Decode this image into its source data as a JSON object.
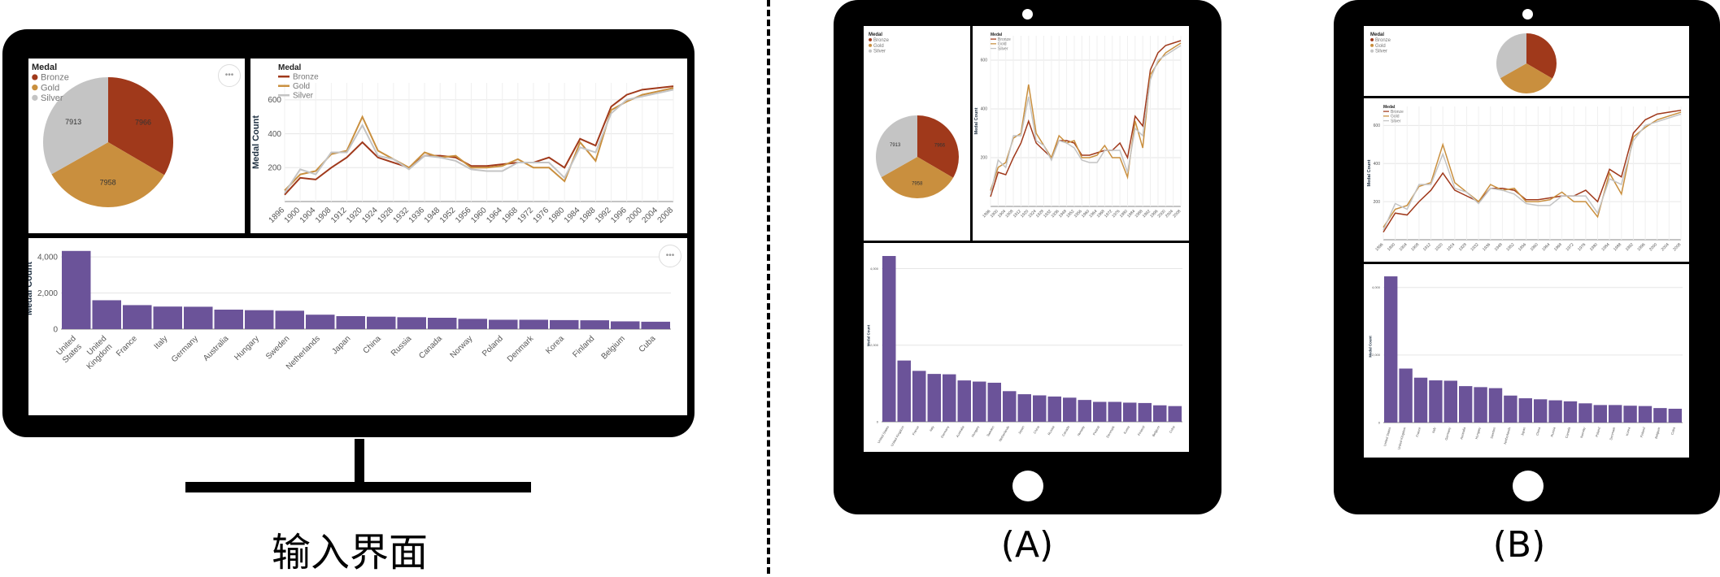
{
  "captions": {
    "monitor": "输入界面",
    "tablet_a": "(A)",
    "tablet_b": "(B)"
  },
  "colors": {
    "bronze": "#a0391b",
    "gold": "#c98f3e",
    "silver": "#c4c4c4",
    "bar": "#6b5399",
    "frame": "#000000"
  },
  "menu_glyph": "•••",
  "chart_data": [
    {
      "type": "pie",
      "title": "Medal",
      "legend": [
        "Bronze",
        "Gold",
        "Silver"
      ],
      "values": [
        7966,
        7958,
        7913
      ],
      "slice_labels": [
        "7966",
        "7958",
        "7913"
      ]
    },
    {
      "type": "line",
      "title": "Medal",
      "ylabel": "Medal Count",
      "ylim": [
        0,
        700
      ],
      "yticks": [
        200,
        400,
        600
      ],
      "x": [
        "1896",
        "1900",
        "1904",
        "1908",
        "1912",
        "1920",
        "1924",
        "1928",
        "1932",
        "1936",
        "1948",
        "1952",
        "1956",
        "1960",
        "1964",
        "1968",
        "1972",
        "1976",
        "1980",
        "1984",
        "1988",
        "1992",
        "1996",
        "2000",
        "2004",
        "2008"
      ],
      "x_tick_labels": [
        "1896",
        "1900",
        "1904",
        "1908",
        "1912",
        "1920",
        "1924",
        "1928",
        "1932",
        "1936",
        "1948",
        "1952",
        "1956",
        "1960",
        "1964",
        "1968",
        "1972",
        "1976",
        "1980",
        "1984",
        "1988",
        "1992",
        "1996",
        "2000",
        "2004",
        "2008"
      ],
      "series": [
        {
          "name": "Bronze",
          "values": [
            40,
            140,
            130,
            200,
            260,
            350,
            260,
            230,
            200,
            270,
            270,
            260,
            210,
            210,
            220,
            230,
            230,
            260,
            200,
            370,
            330,
            560,
            630,
            660,
            670,
            680
          ]
        },
        {
          "name": "Gold",
          "values": [
            65,
            160,
            180,
            280,
            300,
            500,
            300,
            250,
            200,
            290,
            260,
            270,
            200,
            200,
            210,
            250,
            200,
            200,
            120,
            350,
            240,
            540,
            590,
            630,
            650,
            670
          ]
        },
        {
          "name": "Silver",
          "values": [
            50,
            190,
            160,
            290,
            290,
            450,
            270,
            250,
            190,
            270,
            260,
            240,
            190,
            180,
            180,
            230,
            230,
            230,
            140,
            320,
            290,
            520,
            600,
            620,
            640,
            660
          ]
        }
      ]
    },
    {
      "type": "bar",
      "ylabel": "Medal Count",
      "ylim": [
        0,
        4500
      ],
      "yticks": [
        0,
        2000,
        4000
      ],
      "ytick_labels": [
        "0",
        "2,000",
        "4,000"
      ],
      "categories": [
        "United States",
        "United Kingdom",
        "France",
        "Italy",
        "Germany",
        "Australia",
        "Hungary",
        "Sweden",
        "Netherlands",
        "Japan",
        "China",
        "Russia",
        "Canada",
        "Norway",
        "Poland",
        "Denmark",
        "Korea",
        "Finland",
        "Belgium",
        "Cuba"
      ],
      "tick_labels": [
        [
          "United",
          "States"
        ],
        [
          "United",
          "Kingdom"
        ],
        [
          "France"
        ],
        [
          "Italy"
        ],
        [
          "Germany"
        ],
        [
          "Australia"
        ],
        [
          "Hungary"
        ],
        [
          "Sweden"
        ],
        [
          "Netherlands"
        ],
        [
          "Japan"
        ],
        [
          "China"
        ],
        [
          "Russia"
        ],
        [
          "Canada"
        ],
        [
          "Norway"
        ],
        [
          "Poland"
        ],
        [
          "Denmark"
        ],
        [
          "Korea"
        ],
        [
          "Finland"
        ],
        [
          "Belgium"
        ],
        [
          "Cuba"
        ]
      ],
      "values": [
        4330,
        1600,
        1330,
        1250,
        1240,
        1080,
        1050,
        1020,
        800,
        720,
        690,
        660,
        630,
        570,
        520,
        520,
        500,
        490,
        430,
        410
      ]
    }
  ]
}
